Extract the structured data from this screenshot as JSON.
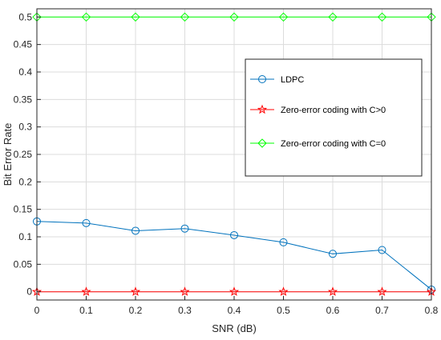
{
  "chart_data": {
    "type": "line",
    "xlabel": "SNR (dB)",
    "ylabel": "Bit Error Rate",
    "xlim": [
      0,
      0.8
    ],
    "ylim": [
      -0.015,
      0.515
    ],
    "xticks": [
      0,
      0.1,
      0.2,
      0.3,
      0.4,
      0.5,
      0.6,
      0.7,
      0.8
    ],
    "yticks": [
      0,
      0.05,
      0.1,
      0.15,
      0.2,
      0.25,
      0.3,
      0.35,
      0.4,
      0.45,
      0.5
    ],
    "xtick_labels": [
      "0",
      "0.1",
      "0.2",
      "0.3",
      "0.4",
      "0.5",
      "0.6",
      "0.7",
      "0.8"
    ],
    "ytick_labels": [
      "0",
      "0.05",
      "0.1",
      "0.15",
      "0.2",
      "0.25",
      "0.3",
      "0.35",
      "0.4",
      "0.45",
      "0.5"
    ],
    "grid": true,
    "legend_position": "top-right",
    "x": [
      0,
      0.1,
      0.2,
      0.3,
      0.4,
      0.5,
      0.6,
      0.7,
      0.8
    ],
    "series": [
      {
        "name": "LDPC",
        "marker": "circle",
        "color": "#0072BD",
        "values": [
          0.128,
          0.125,
          0.111,
          0.115,
          0.103,
          0.09,
          0.069,
          0.076,
          0.004
        ]
      },
      {
        "name": "Zero-error coding with C>0",
        "marker": "star",
        "color": "#FF0000",
        "values": [
          0,
          0,
          0,
          0,
          0,
          0,
          0,
          0,
          0
        ]
      },
      {
        "name": "Zero-error coding with C=0",
        "marker": "diamond",
        "color": "#00FF00",
        "values": [
          0.5,
          0.5,
          0.5,
          0.5,
          0.5,
          0.5,
          0.5,
          0.5,
          0.5
        ]
      }
    ]
  }
}
